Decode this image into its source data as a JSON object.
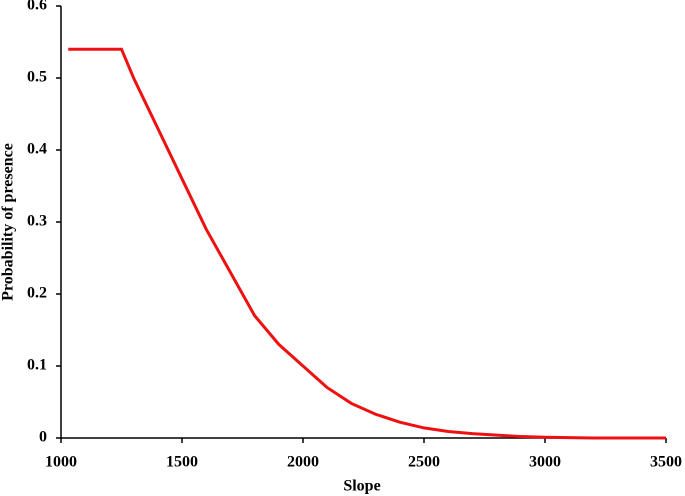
{
  "chart_data": {
    "type": "line",
    "x_label": "Slope",
    "y_label": "Probability of presence",
    "series": [
      {
        "color": "#ee1111",
        "x": [
          1030,
          1250,
          1300,
          1400,
          1500,
          1600,
          1700,
          1800,
          1900,
          2000,
          2100,
          2200,
          2300,
          2400,
          2500,
          2600,
          2700,
          2800,
          2900,
          3000,
          3200,
          3500
        ],
        "values": [
          0.54,
          0.54,
          0.5,
          0.43,
          0.36,
          0.29,
          0.23,
          0.17,
          0.13,
          0.1,
          0.07,
          0.048,
          0.033,
          0.022,
          0.014,
          0.009,
          0.006,
          0.004,
          0.002,
          0.001,
          0,
          0
        ]
      }
    ],
    "xlim": [
      1000,
      3500
    ],
    "xticks": [
      1000,
      1500,
      2000,
      2500,
      3000,
      3500
    ],
    "ylim": [
      0,
      0.6
    ],
    "yticks": [
      0,
      0.1,
      0.2,
      0.3,
      0.4,
      0.5,
      0.6
    ],
    "grid": false
  }
}
